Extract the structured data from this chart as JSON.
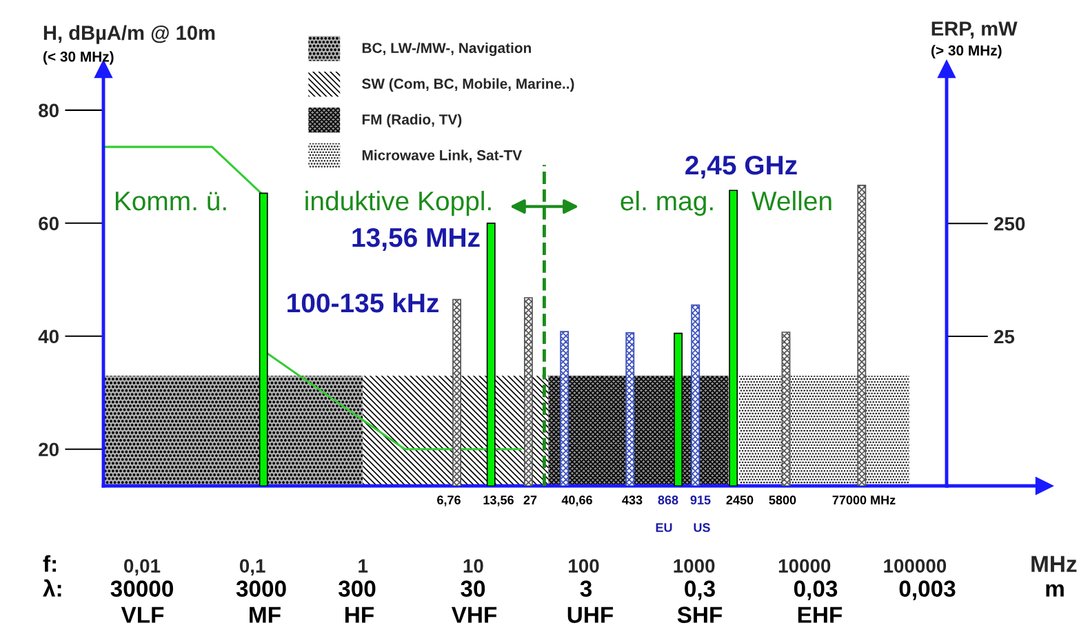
{
  "chart_data": {
    "type": "bar",
    "ylabel": "H, dBµA/m @ 10m",
    "y2label": "ERP, mW",
    "xlabel": "MHz",
    "log": "x",
    "xlim": [
      0.00447,
      194000
    ],
    "ylim": [
      13.5,
      87.3
    ],
    "y2lim": [
      -273,
      558
    ],
    "xticks": [
      {
        "value": 0.01,
        "label": "0,01"
      },
      {
        "value": 0.1,
        "label": "0,1"
      },
      1,
      10,
      100,
      1000,
      10000,
      100000
    ],
    "yticks": [
      20,
      40,
      60,
      80
    ],
    "y2ticks": [
      25,
      250
    ],
    "legend": "top",
    "series": [
      {
        "type": "area",
        "name": "BC, LW-/MW-, Navigation",
        "color": "#b0b0b0",
        "x": [
          0.00447,
          1
        ],
        "values": [
          33,
          33
        ]
      },
      {
        "type": "area",
        "name": "SW (Com, BC, Mobile, Marine..)",
        "color": "#ffffff",
        "x": [
          1,
          48
        ],
        "values": [
          33,
          33
        ]
      },
      {
        "type": "area",
        "name": "FM (Radio, TV)",
        "color": "#8c8c8c",
        "x": [
          48,
          2050
        ],
        "values": [
          33,
          33
        ]
      },
      {
        "type": "area",
        "name": "Microwave Link, Sat-TV",
        "color": "#ffffff",
        "x": [
          2560,
          89000
        ],
        "values": [
          33,
          33
        ]
      },
      {
        "type": "line",
        "color": "#33cc33",
        "x": [
          0.00447,
          0.043,
          0.12,
          0.13,
          0.135,
          2.4,
          27
        ],
        "values": [
          73.5,
          73.5,
          65.3,
          null,
          37,
          20,
          20
        ]
      },
      {
        "color": "#00ee00",
        "x": [
          0.126,
          14.5,
          718,
          2270
        ],
        "values": [
          65.3,
          60,
          40.5,
          65.8
        ]
      },
      {
        "color": "#555555",
        "x": [
          7.1,
          31.6,
          6800,
          33000
        ],
        "values": [
          46.5,
          46.8,
          40.7,
          66.7
        ]
      },
      {
        "color": "#3a4fbf",
        "x": [
          67,
          263,
          1030
        ],
        "values": [
          40.8,
          40.6,
          45.5
        ]
      }
    ],
    "ref_lines": [
      {
        "axis": "x",
        "value": 44,
        "color": "#1a8c1a",
        "line_style": "dashed"
      }
    ],
    "annotations": [
      "Komm. ü.",
      "induktive Koppl.",
      "el. mag.",
      "Wellen",
      "100-135 kHz",
      "6,76",
      "13,56",
      "27",
      "40,66",
      "433",
      "868",
      "915",
      "2450",
      "5800",
      "77000 MHz",
      "EU",
      "US",
      "(< 30 MHz)",
      "(> 30 MHz)",
      "f:",
      "λ:",
      "VLF",
      "MF",
      "HF",
      "VHF",
      "UHF",
      "SHF",
      "EHF",
      "13,56 MHz",
      "2,45 GHz",
      "30000",
      "3000",
      "300",
      "30",
      "3",
      "0,3",
      "0,03",
      "0,003",
      "m"
    ]
  }
}
